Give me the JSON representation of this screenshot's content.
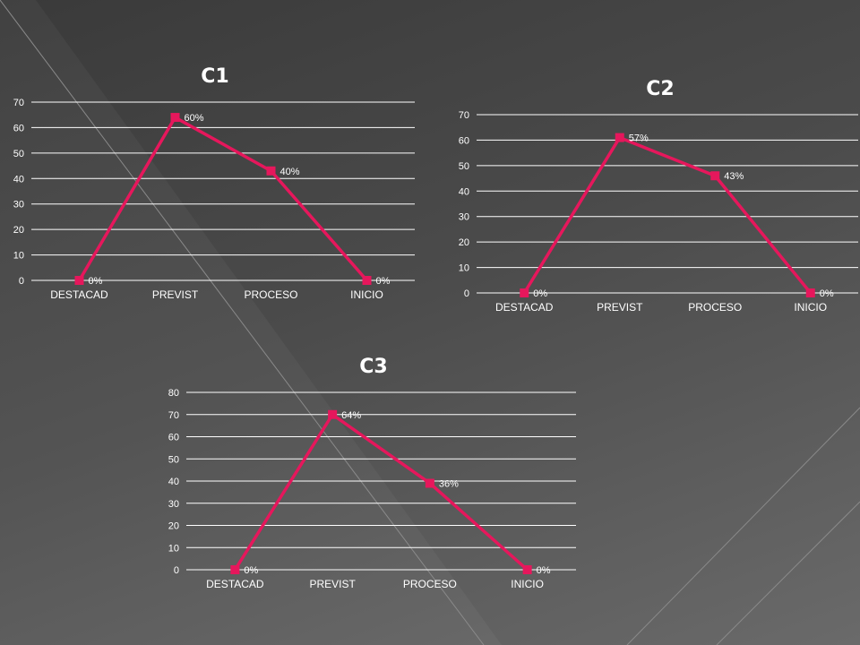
{
  "slide": {
    "background_colors": [
      "#3a3a3a",
      "#6a6a6a"
    ],
    "series_color": "#e6175c"
  },
  "chart_data": [
    {
      "type": "line",
      "title": "C1",
      "categories": [
        "DESTACAD",
        "PREVIST",
        "PROCESO",
        "INICIO"
      ],
      "series": [
        {
          "values": [
            0,
            64,
            43,
            0
          ],
          "labels": [
            "0%",
            "60%",
            "40%",
            "0%"
          ]
        }
      ],
      "ylim": [
        0,
        70
      ],
      "yticks": [
        "0",
        "10",
        "20",
        "30",
        "40",
        "50",
        "60",
        "70"
      ],
      "grid": true
    },
    {
      "type": "line",
      "title": "C2",
      "categories": [
        "DESTACAD",
        "PREVIST",
        "PROCESO",
        "INICIO"
      ],
      "series": [
        {
          "values": [
            0,
            61,
            46,
            0
          ],
          "labels": [
            "0%",
            "57%",
            "43%",
            "0%"
          ]
        }
      ],
      "ylim": [
        0,
        70
      ],
      "yticks": [
        "0",
        "10",
        "20",
        "30",
        "40",
        "50",
        "60",
        "70"
      ],
      "grid": true
    },
    {
      "type": "line",
      "title": "C3",
      "categories": [
        "DESTACAD",
        "PREVIST",
        "PROCESO",
        "INICIO"
      ],
      "series": [
        {
          "values": [
            0,
            70,
            39,
            0
          ],
          "labels": [
            "0%",
            "64%",
            "36%",
            "0%"
          ]
        }
      ],
      "ylim": [
        0,
        80
      ],
      "yticks": [
        "0",
        "10",
        "20",
        "30",
        "40",
        "50",
        "60",
        "70",
        "80"
      ],
      "grid": true
    }
  ]
}
